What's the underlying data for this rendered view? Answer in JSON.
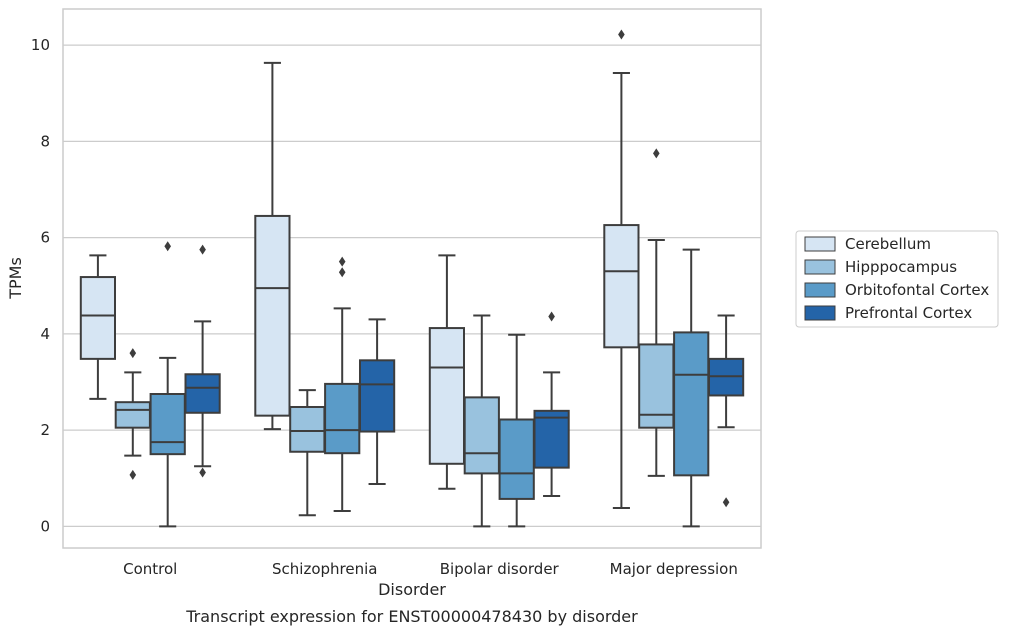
{
  "chart_data": {
    "type": "box",
    "caption": "Transcript expression for ENST00000478430 by disorder",
    "xlabel": "Disorder",
    "ylabel": "TPMs",
    "ylim": [
      -0.45,
      10.75
    ],
    "yticks": [
      0,
      2,
      4,
      6,
      8,
      10
    ],
    "grid": "horizontal",
    "legend_position": "right",
    "categories": [
      "Control",
      "Schizophrenia",
      "Bipolar disorder",
      "Major depression"
    ],
    "series": [
      {
        "name": "Cerebellum",
        "color": "#d6e5f3",
        "boxes": [
          {
            "whisker_low": 2.65,
            "q1": 3.48,
            "median": 4.38,
            "q3": 5.18,
            "whisker_high": 5.63,
            "outliers": []
          },
          {
            "whisker_low": 2.02,
            "q1": 2.3,
            "median": 4.95,
            "q3": 6.45,
            "whisker_high": 9.63,
            "outliers": []
          },
          {
            "whisker_low": 0.78,
            "q1": 1.3,
            "median": 3.3,
            "q3": 4.12,
            "whisker_high": 5.63,
            "outliers": []
          },
          {
            "whisker_low": 0.38,
            "q1": 3.72,
            "median": 5.3,
            "q3": 6.26,
            "whisker_high": 9.42,
            "outliers": [
              10.22
            ]
          }
        ]
      },
      {
        "name": "Hipppocampus",
        "color": "#99c2de",
        "boxes": [
          {
            "whisker_low": 1.47,
            "q1": 2.05,
            "median": 2.42,
            "q3": 2.58,
            "whisker_high": 3.2,
            "outliers": [
              3.6,
              1.07
            ]
          },
          {
            "whisker_low": 0.23,
            "q1": 1.55,
            "median": 1.98,
            "q3": 2.48,
            "whisker_high": 2.83,
            "outliers": []
          },
          {
            "whisker_low": 0.0,
            "q1": 1.1,
            "median": 1.52,
            "q3": 2.68,
            "whisker_high": 4.38,
            "outliers": []
          },
          {
            "whisker_low": 1.05,
            "q1": 2.05,
            "median": 2.32,
            "q3": 3.78,
            "whisker_high": 5.95,
            "outliers": [
              7.75
            ]
          }
        ]
      },
      {
        "name": "Orbitofontal Cortex",
        "color": "#5a9bc8",
        "boxes": [
          {
            "whisker_low": 0.0,
            "q1": 1.5,
            "median": 1.75,
            "q3": 2.75,
            "whisker_high": 3.5,
            "outliers": [
              5.82
            ]
          },
          {
            "whisker_low": 0.32,
            "q1": 1.52,
            "median": 2.0,
            "q3": 2.96,
            "whisker_high": 4.53,
            "outliers": [
              5.5,
              5.28
            ]
          },
          {
            "whisker_low": 0.0,
            "q1": 0.57,
            "median": 1.1,
            "q3": 2.22,
            "whisker_high": 3.98,
            "outliers": []
          },
          {
            "whisker_low": 0.0,
            "q1": 1.06,
            "median": 3.15,
            "q3": 4.03,
            "whisker_high": 5.75,
            "outliers": []
          }
        ]
      },
      {
        "name": "Prefrontal Cortex",
        "color": "#2464a8",
        "boxes": [
          {
            "whisker_low": 1.25,
            "q1": 2.36,
            "median": 2.88,
            "q3": 3.16,
            "whisker_high": 4.26,
            "outliers": [
              5.75,
              1.12
            ]
          },
          {
            "whisker_low": 0.88,
            "q1": 1.97,
            "median": 2.95,
            "q3": 3.45,
            "whisker_high": 4.3,
            "outliers": []
          },
          {
            "whisker_low": 0.63,
            "q1": 1.22,
            "median": 2.26,
            "q3": 2.4,
            "whisker_high": 3.2,
            "outliers": [
              4.36
            ]
          },
          {
            "whisker_low": 2.06,
            "q1": 2.72,
            "median": 3.12,
            "q3": 3.48,
            "whisker_high": 4.38,
            "outliers": [
              0.5
            ]
          }
        ]
      }
    ]
  }
}
